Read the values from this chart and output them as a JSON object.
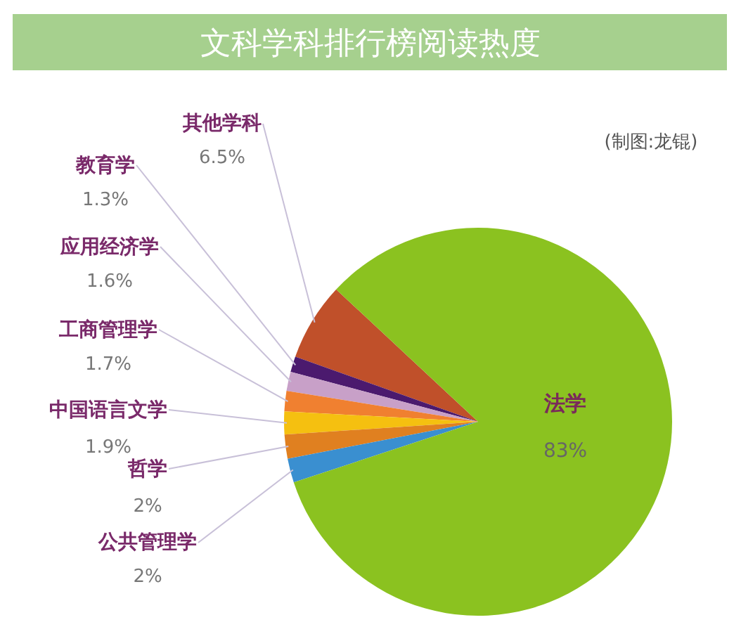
{
  "chart_data": {
    "type": "pie",
    "title": "文科学科排行榜阅读热度",
    "categories": [
      "其他学科",
      "教育学",
      "应用经济学",
      "工商管理学",
      "中国语言文学",
      "哲学",
      "公共管理学",
      "法学"
    ],
    "values": [
      6.5,
      1.3,
      1.6,
      1.7,
      1.9,
      2,
      2,
      83
    ],
    "value_labels": [
      "6.5%",
      "1.3%",
      "1.6%",
      "1.7%",
      "1.9%",
      "2%",
      "2%",
      "83%"
    ],
    "colors": [
      "#c0502a",
      "#4b1a6e",
      "#c8a0c8",
      "#f08030",
      "#f5c010",
      "#e08020",
      "#3a8fd0",
      "#8bc220"
    ],
    "annotations": [
      "(制图:龙锟)"
    ]
  }
}
